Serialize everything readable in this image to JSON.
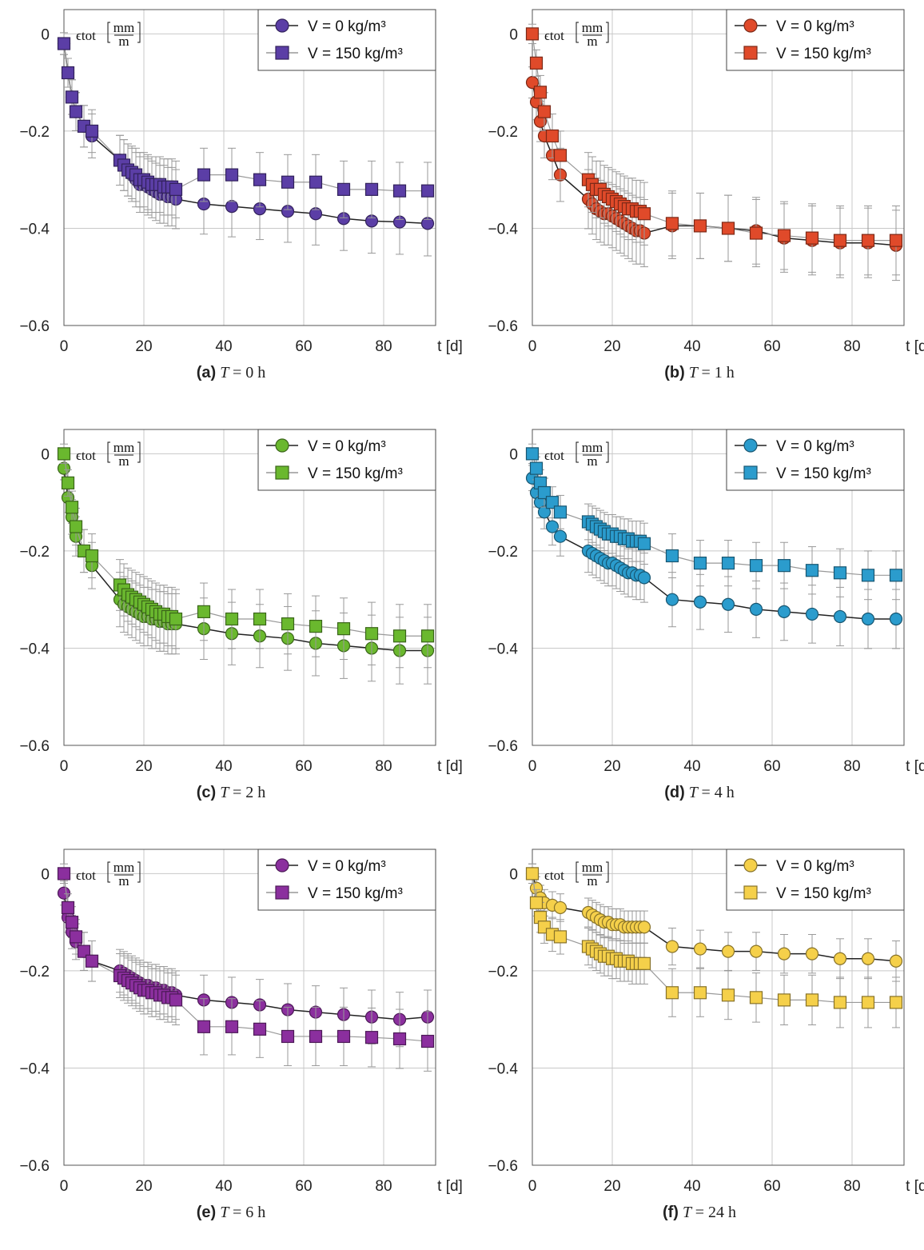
{
  "figure": {
    "y_axis": {
      "label": "ϵtot",
      "unit_num": "mm",
      "unit_den": "m",
      "ticks": [
        "0",
        "−0.2",
        "−0.4",
        "−0.6"
      ]
    },
    "x_axis": {
      "unit": "t [d]",
      "ticks": [
        "0",
        "20",
        "40",
        "60",
        "80"
      ]
    },
    "legend": {
      "series0": "V = 0 kg/m³",
      "series1": "V = 150 kg/m³"
    }
  },
  "chart_data": [
    {
      "type": "line",
      "letter": "(a)",
      "caption_param": "T",
      "caption_value": "= 0 h",
      "color": "#5b3ea6",
      "legend_position": "top-right",
      "xlim": [
        0,
        93
      ],
      "ylim": [
        -0.6,
        0.05
      ],
      "grid": true,
      "series": [
        {
          "name": "V = 0 kg/m³",
          "marker": "circle",
          "x": [
            0,
            1,
            2,
            3,
            5,
            7,
            14,
            15,
            16,
            17,
            18,
            19,
            20,
            21,
            22,
            23,
            24,
            25,
            26,
            27,
            28,
            35,
            42,
            49,
            56,
            63,
            70,
            77,
            84,
            91
          ],
          "y": [
            -0.02,
            -0.08,
            -0.13,
            -0.16,
            -0.19,
            -0.21,
            -0.26,
            -0.27,
            -0.28,
            -0.29,
            -0.3,
            -0.31,
            -0.31,
            -0.315,
            -0.32,
            -0.325,
            -0.33,
            -0.33,
            -0.335,
            -0.335,
            -0.34,
            -0.35,
            -0.355,
            -0.36,
            -0.365,
            -0.37,
            -0.38,
            -0.385,
            -0.387,
            -0.39
          ]
        },
        {
          "name": "V = 150 kg/m³",
          "marker": "square",
          "x": [
            0,
            1,
            2,
            3,
            5,
            7,
            14,
            15,
            16,
            17,
            18,
            19,
            20,
            21,
            22,
            23,
            24,
            25,
            26,
            27,
            28,
            35,
            42,
            49,
            56,
            63,
            70,
            77,
            84,
            91
          ],
          "y": [
            -0.02,
            -0.08,
            -0.13,
            -0.16,
            -0.19,
            -0.2,
            -0.26,
            -0.27,
            -0.28,
            -0.285,
            -0.29,
            -0.3,
            -0.3,
            -0.305,
            -0.31,
            -0.31,
            -0.31,
            -0.315,
            -0.315,
            -0.315,
            -0.32,
            -0.29,
            -0.29,
            -0.3,
            -0.305,
            -0.305,
            -0.32,
            -0.32,
            -0.323,
            -0.323
          ]
        }
      ]
    },
    {
      "type": "line",
      "letter": "(b)",
      "caption_param": "T",
      "caption_value": "= 1 h",
      "color": "#e04a2a",
      "legend_position": "top-right",
      "xlim": [
        0,
        93
      ],
      "ylim": [
        -0.6,
        0.05
      ],
      "grid": true,
      "series": [
        {
          "name": "V = 0 kg/m³",
          "marker": "circle",
          "x": [
            0,
            1,
            2,
            3,
            5,
            7,
            14,
            15,
            16,
            17,
            18,
            19,
            20,
            21,
            22,
            23,
            24,
            25,
            26,
            27,
            28,
            35,
            42,
            49,
            56,
            63,
            70,
            77,
            84,
            91
          ],
          "y": [
            -0.1,
            -0.14,
            -0.18,
            -0.21,
            -0.25,
            -0.29,
            -0.34,
            -0.35,
            -0.36,
            -0.365,
            -0.37,
            -0.37,
            -0.375,
            -0.38,
            -0.385,
            -0.39,
            -0.395,
            -0.4,
            -0.405,
            -0.405,
            -0.41,
            -0.395,
            -0.395,
            -0.4,
            -0.405,
            -0.42,
            -0.425,
            -0.43,
            -0.43,
            -0.435
          ]
        },
        {
          "name": "V = 150 kg/m³",
          "marker": "square",
          "x": [
            0,
            1,
            2,
            3,
            5,
            7,
            14,
            15,
            16,
            17,
            18,
            19,
            20,
            21,
            22,
            23,
            24,
            25,
            26,
            27,
            28,
            35,
            42,
            49,
            56,
            63,
            70,
            77,
            84,
            91
          ],
          "y": [
            0,
            -0.06,
            -0.12,
            -0.16,
            -0.21,
            -0.25,
            -0.3,
            -0.31,
            -0.32,
            -0.32,
            -0.33,
            -0.335,
            -0.34,
            -0.345,
            -0.35,
            -0.355,
            -0.36,
            -0.36,
            -0.365,
            -0.365,
            -0.37,
            -0.39,
            -0.395,
            -0.4,
            -0.41,
            -0.415,
            -0.42,
            -0.425,
            -0.425,
            -0.425
          ]
        }
      ]
    },
    {
      "type": "line",
      "letter": "(c)",
      "caption_param": "T",
      "caption_value": "= 2 h",
      "color": "#6ab82e",
      "legend_position": "top-right",
      "xlim": [
        0,
        93
      ],
      "ylim": [
        -0.6,
        0.05
      ],
      "grid": true,
      "series": [
        {
          "name": "V = 0 kg/m³",
          "marker": "circle",
          "x": [
            0,
            1,
            2,
            3,
            5,
            7,
            14,
            15,
            16,
            17,
            18,
            19,
            20,
            21,
            22,
            23,
            24,
            25,
            26,
            27,
            28,
            35,
            42,
            49,
            56,
            63,
            70,
            77,
            84,
            91
          ],
          "y": [
            -0.03,
            -0.09,
            -0.13,
            -0.17,
            -0.2,
            -0.23,
            -0.3,
            -0.31,
            -0.315,
            -0.32,
            -0.325,
            -0.33,
            -0.335,
            -0.335,
            -0.34,
            -0.34,
            -0.345,
            -0.345,
            -0.35,
            -0.35,
            -0.35,
            -0.36,
            -0.37,
            -0.375,
            -0.38,
            -0.39,
            -0.395,
            -0.4,
            -0.405,
            -0.405
          ]
        },
        {
          "name": "V = 150 kg/m³",
          "marker": "square",
          "x": [
            0,
            1,
            2,
            3,
            5,
            7,
            14,
            15,
            16,
            17,
            18,
            19,
            20,
            21,
            22,
            23,
            24,
            25,
            26,
            27,
            28,
            35,
            42,
            49,
            56,
            63,
            70,
            77,
            84,
            91
          ],
          "y": [
            0,
            -0.06,
            -0.11,
            -0.15,
            -0.2,
            -0.21,
            -0.27,
            -0.28,
            -0.29,
            -0.295,
            -0.3,
            -0.305,
            -0.31,
            -0.315,
            -0.32,
            -0.325,
            -0.33,
            -0.33,
            -0.335,
            -0.335,
            -0.34,
            -0.325,
            -0.34,
            -0.34,
            -0.35,
            -0.355,
            -0.36,
            -0.37,
            -0.375,
            -0.375
          ]
        }
      ]
    },
    {
      "type": "line",
      "letter": "(d)",
      "caption_param": "T",
      "caption_value": "= 4 h",
      "color": "#2b9ccd",
      "legend_position": "top-right",
      "xlim": [
        0,
        93
      ],
      "ylim": [
        -0.6,
        0.05
      ],
      "grid": true,
      "series": [
        {
          "name": "V = 0 kg/m³",
          "marker": "circle",
          "x": [
            0,
            1,
            2,
            3,
            5,
            7,
            14,
            15,
            16,
            17,
            18,
            19,
            20,
            21,
            22,
            23,
            24,
            25,
            26,
            27,
            28,
            35,
            42,
            49,
            56,
            63,
            70,
            77,
            84,
            91
          ],
          "y": [
            -0.05,
            -0.08,
            -0.1,
            -0.12,
            -0.15,
            -0.17,
            -0.2,
            -0.205,
            -0.21,
            -0.215,
            -0.22,
            -0.225,
            -0.225,
            -0.23,
            -0.235,
            -0.24,
            -0.245,
            -0.245,
            -0.25,
            -0.25,
            -0.255,
            -0.3,
            -0.305,
            -0.31,
            -0.32,
            -0.325,
            -0.33,
            -0.335,
            -0.34,
            -0.34
          ]
        },
        {
          "name": "V = 150 kg/m³",
          "marker": "square",
          "x": [
            0,
            1,
            2,
            3,
            5,
            7,
            14,
            15,
            16,
            17,
            18,
            19,
            20,
            21,
            22,
            23,
            24,
            25,
            26,
            27,
            28,
            35,
            42,
            49,
            56,
            63,
            70,
            77,
            84,
            91
          ],
          "y": [
            0,
            -0.03,
            -0.06,
            -0.08,
            -0.1,
            -0.12,
            -0.14,
            -0.145,
            -0.15,
            -0.155,
            -0.16,
            -0.165,
            -0.165,
            -0.17,
            -0.17,
            -0.175,
            -0.175,
            -0.18,
            -0.18,
            -0.18,
            -0.185,
            -0.21,
            -0.225,
            -0.225,
            -0.23,
            -0.23,
            -0.24,
            -0.245,
            -0.25,
            -0.25
          ]
        }
      ]
    },
    {
      "type": "line",
      "letter": "(e)",
      "caption_param": "T",
      "caption_value": "= 6 h",
      "color": "#8b2f9e",
      "legend_position": "top-right",
      "xlim": [
        0,
        93
      ],
      "ylim": [
        -0.6,
        0.05
      ],
      "grid": true,
      "series": [
        {
          "name": "V = 0 kg/m³",
          "marker": "circle",
          "x": [
            0,
            1,
            2,
            3,
            5,
            7,
            14,
            15,
            16,
            17,
            18,
            19,
            20,
            21,
            22,
            23,
            24,
            25,
            26,
            27,
            28,
            35,
            42,
            49,
            56,
            63,
            70,
            77,
            84,
            91
          ],
          "y": [
            -0.04,
            -0.09,
            -0.12,
            -0.14,
            -0.16,
            -0.18,
            -0.2,
            -0.205,
            -0.21,
            -0.215,
            -0.22,
            -0.225,
            -0.23,
            -0.23,
            -0.235,
            -0.235,
            -0.24,
            -0.24,
            -0.245,
            -0.245,
            -0.25,
            -0.26,
            -0.265,
            -0.27,
            -0.28,
            -0.285,
            -0.29,
            -0.295,
            -0.3,
            -0.295
          ]
        },
        {
          "name": "V = 150 kg/m³",
          "marker": "square",
          "x": [
            0,
            1,
            2,
            3,
            5,
            7,
            14,
            15,
            16,
            17,
            18,
            19,
            20,
            21,
            22,
            23,
            24,
            25,
            26,
            27,
            28,
            35,
            42,
            49,
            56,
            63,
            70,
            77,
            84,
            91
          ],
          "y": [
            0,
            -0.07,
            -0.1,
            -0.13,
            -0.16,
            -0.18,
            -0.21,
            -0.215,
            -0.22,
            -0.225,
            -0.23,
            -0.235,
            -0.24,
            -0.24,
            -0.245,
            -0.245,
            -0.25,
            -0.25,
            -0.255,
            -0.255,
            -0.26,
            -0.315,
            -0.315,
            -0.32,
            -0.335,
            -0.335,
            -0.335,
            -0.337,
            -0.34,
            -0.345
          ]
        }
      ]
    },
    {
      "type": "line",
      "letter": "(f)",
      "caption_param": "T",
      "caption_value": "= 24 h",
      "color": "#f5d04a",
      "legend_position": "top-right",
      "xlim": [
        0,
        93
      ],
      "ylim": [
        -0.6,
        0.05
      ],
      "grid": true,
      "series": [
        {
          "name": "V = 0 kg/m³",
          "marker": "circle",
          "x": [
            0,
            1,
            2,
            3,
            5,
            7,
            14,
            15,
            16,
            17,
            18,
            19,
            20,
            21,
            22,
            23,
            24,
            25,
            26,
            27,
            28,
            35,
            42,
            49,
            56,
            63,
            70,
            77,
            84,
            91
          ],
          "y": [
            0,
            -0.03,
            -0.05,
            -0.06,
            -0.065,
            -0.07,
            -0.08,
            -0.085,
            -0.09,
            -0.095,
            -0.1,
            -0.1,
            -0.105,
            -0.105,
            -0.105,
            -0.11,
            -0.11,
            -0.11,
            -0.11,
            -0.11,
            -0.11,
            -0.15,
            -0.155,
            -0.16,
            -0.16,
            -0.165,
            -0.165,
            -0.175,
            -0.175,
            -0.18
          ]
        },
        {
          "name": "V = 150 kg/m³",
          "marker": "square",
          "x": [
            0,
            1,
            2,
            3,
            5,
            7,
            14,
            15,
            16,
            17,
            18,
            19,
            20,
            21,
            22,
            23,
            24,
            25,
            26,
            27,
            28,
            35,
            42,
            49,
            56,
            63,
            70,
            77,
            84,
            91
          ],
          "y": [
            0,
            -0.06,
            -0.09,
            -0.11,
            -0.125,
            -0.13,
            -0.15,
            -0.155,
            -0.16,
            -0.165,
            -0.17,
            -0.17,
            -0.175,
            -0.175,
            -0.18,
            -0.18,
            -0.18,
            -0.185,
            -0.185,
            -0.185,
            -0.185,
            -0.245,
            -0.245,
            -0.25,
            -0.255,
            -0.26,
            -0.26,
            -0.265,
            -0.265,
            -0.265
          ]
        }
      ]
    }
  ]
}
